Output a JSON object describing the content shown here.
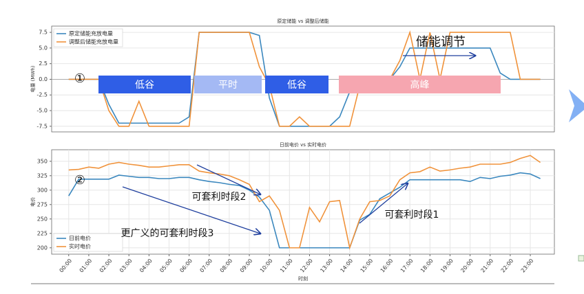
{
  "chart_data": [
    {
      "type": "line",
      "title": "原定储能 vs 调整后储能",
      "ylabel": "电量 (MWh)",
      "grid": true,
      "legend": "upper left",
      "xlim": [
        -0.85,
        24.2
      ],
      "ylim": [
        -8.4,
        8.5
      ],
      "yticks": [
        -7.5,
        {
          "value": -5,
          "label": "-5.0"
        },
        -2.5,
        {
          "value": 0,
          "label": "0.0"
        },
        2.5,
        {
          "value": 5,
          "label": "5.0"
        },
        7.5
      ],
      "x": [
        0,
        0.5,
        1,
        1.5,
        2,
        2.5,
        3,
        3.5,
        4,
        4.5,
        5,
        5.5,
        6,
        6.5,
        7,
        7.5,
        8,
        8.5,
        9,
        9.5,
        10,
        10.5,
        11,
        11.5,
        12,
        12.5,
        13,
        13.5,
        14,
        14.5,
        15,
        15.5,
        16,
        16.5,
        17,
        17.5,
        18,
        18.5,
        19,
        19.5,
        20,
        20.5,
        21,
        21.5,
        22,
        22.5,
        23,
        23.5
      ],
      "series": [
        {
          "name": "原定储能充放电量",
          "color": "#3a87be",
          "values": [
            0,
            0,
            0,
            0,
            -4,
            -7,
            -7,
            -7,
            -7,
            -7,
            -7,
            -7,
            -6,
            7.5,
            7.5,
            7.5,
            7.5,
            7.5,
            7.5,
            7,
            -3,
            -7.5,
            -7.5,
            -7.5,
            -7.5,
            -7.5,
            -7.5,
            -6,
            -2,
            0,
            0,
            0,
            0,
            2,
            5,
            5,
            5,
            5,
            5,
            5,
            5,
            5,
            5,
            1,
            0,
            0,
            0,
            0
          ]
        },
        {
          "name": "调整后储能充放电量",
          "color": "#f0923a",
          "values": [
            0,
            0,
            0,
            0,
            -5,
            -7.5,
            -7.5,
            -3.5,
            -7.5,
            -7.5,
            -7.5,
            -7.5,
            -7.5,
            7.5,
            7.5,
            7.5,
            7.5,
            7.5,
            7.5,
            2,
            -1,
            -7.5,
            -7.5,
            -6,
            -7.5,
            -7.5,
            -7.5,
            -7.5,
            -7.5,
            -1,
            0,
            0,
            0,
            3,
            7.5,
            0,
            7.5,
            0,
            7.5,
            7.5,
            7.5,
            7.5,
            7.5,
            7.5,
            7.5,
            0,
            0,
            0
          ]
        }
      ],
      "regions": [
        {
          "label": "低谷",
          "color": "#2f5ee6"
        },
        {
          "label": "平时",
          "color": "#a4b9f4"
        },
        {
          "label": "低谷",
          "color": "#2f5ee6"
        },
        {
          "label": "高峰",
          "color": "#f6a6b0"
        }
      ],
      "annotations": [
        "①",
        "储能调节"
      ]
    },
    {
      "type": "line",
      "title": "日前电价 vs 实时电价",
      "ylabel": "电价",
      "xlabel": "时刻",
      "grid": true,
      "legend": "lower left",
      "xlim": [
        -0.85,
        24.2
      ],
      "ylim": [
        189,
        370
      ],
      "yticks": [
        200,
        225,
        250,
        275,
        300,
        325,
        350
      ],
      "xticks": [
        {
          "value": 0,
          "label": "00:00"
        },
        {
          "value": 1,
          "label": "01:00"
        },
        {
          "value": 2,
          "label": "02:00"
        },
        {
          "value": 3,
          "label": "03:00"
        },
        {
          "value": 4,
          "label": "04:00"
        },
        {
          "value": 5,
          "label": "05:00"
        },
        {
          "value": 6,
          "label": "06:00"
        },
        {
          "value": 7,
          "label": "07:00"
        },
        {
          "value": 8,
          "label": "08:00"
        },
        {
          "value": 9,
          "label": "09:00"
        },
        {
          "value": 10,
          "label": "10:00"
        },
        {
          "value": 11,
          "label": "11:00"
        },
        {
          "value": 12,
          "label": "12:00"
        },
        {
          "value": 13,
          "label": "13:00"
        },
        {
          "value": 14,
          "label": "14:00"
        },
        {
          "value": 15,
          "label": "15:00"
        },
        {
          "value": 16,
          "label": "16:00"
        },
        {
          "value": 17,
          "label": "17:00"
        },
        {
          "value": 18,
          "label": "18:00"
        },
        {
          "value": 19,
          "label": "19:00"
        },
        {
          "value": 20,
          "label": "20:00"
        },
        {
          "value": 21,
          "label": "21:00"
        },
        {
          "value": 22,
          "label": "22:00"
        },
        {
          "value": 23,
          "label": "23:00"
        }
      ],
      "x": [
        0,
        0.5,
        1,
        1.5,
        2,
        2.5,
        3,
        3.5,
        4,
        4.5,
        5,
        5.5,
        6,
        6.5,
        7,
        7.5,
        8,
        8.5,
        9,
        9.5,
        10,
        10.5,
        11,
        11.5,
        12,
        12.5,
        13,
        13.5,
        14,
        14.5,
        15,
        15.5,
        16,
        16.5,
        17,
        17.5,
        18,
        18.5,
        19,
        19.5,
        20,
        20.5,
        21,
        21.5,
        22,
        22.5,
        23,
        23.5
      ],
      "series": [
        {
          "name": "日前电价",
          "color": "#3a87be",
          "values": [
            290,
            319,
            319,
            319,
            319,
            326,
            324,
            322,
            322,
            320,
            320,
            322,
            322,
            318,
            315,
            313,
            310,
            308,
            300,
            288,
            265,
            200,
            200,
            200,
            200,
            200,
            200,
            200,
            200,
            248,
            258,
            285,
            295,
            305,
            318,
            318,
            318,
            318,
            318,
            318,
            315,
            322,
            320,
            324,
            326,
            330,
            328,
            320
          ]
        },
        {
          "name": "实时电价",
          "color": "#f0923a",
          "values": [
            335,
            336,
            340,
            338,
            345,
            348,
            345,
            343,
            340,
            340,
            342,
            344,
            344,
            333,
            330,
            328,
            325,
            318,
            310,
            280,
            290,
            265,
            200,
            200,
            270,
            245,
            280,
            282,
            200,
            250,
            280,
            282,
            290,
            318,
            330,
            332,
            340,
            333,
            335,
            338,
            340,
            345,
            345,
            345,
            348,
            355,
            360,
            348
          ]
        }
      ],
      "annotations": [
        "②",
        "可套利时段2",
        "更广义的可套利时段3",
        "可套利时段1"
      ]
    }
  ]
}
